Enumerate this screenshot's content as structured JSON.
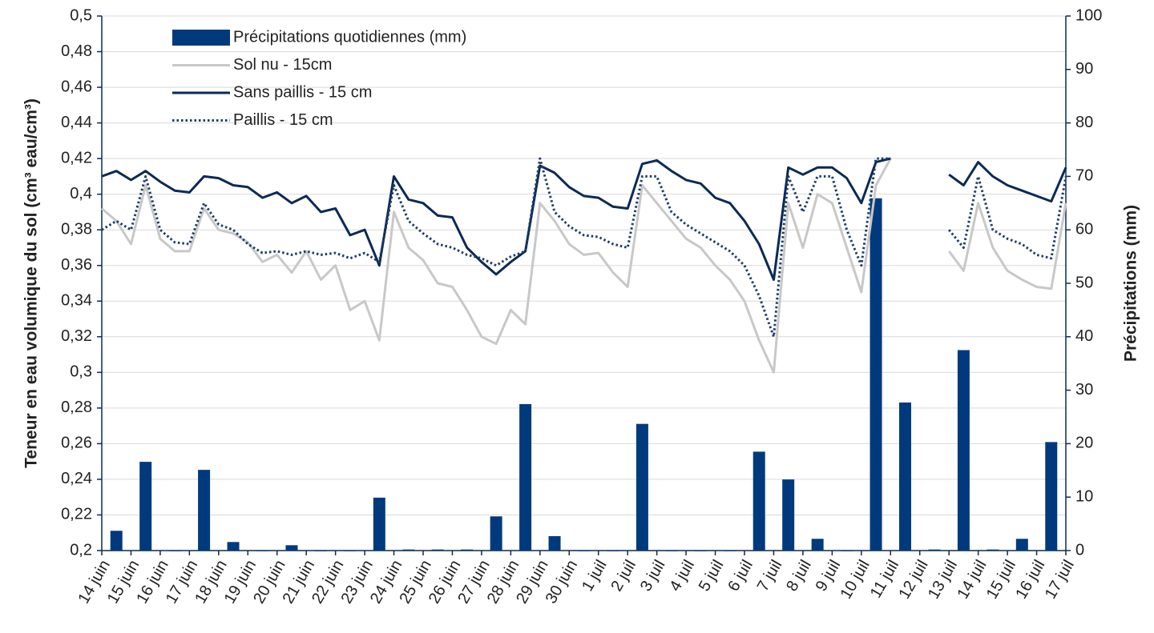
{
  "chart_data": {
    "type": "bar_line",
    "ylabel": "Teneur en eau volumique du sol (cm³ eau/cm³)",
    "y2label": "Précipitations (mm)",
    "categories": [
      "14 juin",
      null,
      "15 juin",
      null,
      "16 juin",
      null,
      "17 juin",
      null,
      "18 juin",
      null,
      "19 juin",
      null,
      "20 juin",
      null,
      "21 juin",
      null,
      "22 juin",
      null,
      "23 juin",
      null,
      "24 juin",
      null,
      "25 juin",
      null,
      "26 juin",
      null,
      "27 juin",
      null,
      "28 juin",
      null,
      "29 juin",
      null,
      "30 juin",
      null,
      "1 juil",
      null,
      "2 juil",
      null,
      "3 juil",
      null,
      "4 juil",
      null,
      "5 juil",
      null,
      "6 juil",
      null,
      "7 juil",
      null,
      "8 juil",
      null,
      "9 juil",
      null,
      "10 juil",
      null,
      "11 juil",
      null,
      "12 juil",
      null,
      "13 juil",
      null,
      "14 juil",
      null,
      "15 juil",
      null,
      "16 juil",
      null,
      "17 juil"
    ],
    "series": [
      {
        "name": "Précipitations quotidiennes (mm)",
        "kind": "bar",
        "axis": "y2",
        "color": "#003a7d",
        "values": [
          null,
          3.7,
          null,
          16.6,
          null,
          0,
          null,
          15.1,
          null,
          1.6,
          null,
          0,
          null,
          1,
          null,
          0,
          null,
          0,
          null,
          9.9,
          null,
          0.2,
          null,
          0.2,
          null,
          0.2,
          null,
          6.4,
          null,
          27.4,
          null,
          2.7,
          null,
          0,
          null,
          0,
          null,
          23.7,
          null,
          0,
          null,
          0,
          null,
          0,
          null,
          18.5,
          null,
          13.3,
          null,
          2.2,
          null,
          0,
          null,
          65.9,
          null,
          27.7,
          null,
          0.2,
          null,
          37.5,
          null,
          0.2,
          null,
          2.2,
          null,
          20.3,
          null
        ]
      },
      {
        "name": "Sol nu - 15cm",
        "kind": "line",
        "color": "#c8c8c8",
        "dash": "solid",
        "values": [
          0.392,
          0.385,
          0.372,
          0.405,
          0.375,
          0.368,
          0.368,
          0.392,
          0.38,
          0.378,
          0.373,
          0.362,
          0.366,
          0.356,
          0.368,
          0.352,
          0.36,
          0.335,
          0.34,
          0.318,
          0.39,
          0.37,
          0.363,
          0.35,
          0.348,
          0.335,
          0.32,
          0.316,
          0.335,
          0.327,
          0.395,
          0.385,
          0.372,
          0.366,
          0.367,
          0.356,
          0.348,
          0.405,
          0.395,
          0.385,
          0.375,
          0.37,
          0.36,
          0.352,
          0.34,
          0.318,
          0.3,
          0.395,
          0.37,
          0.4,
          0.395,
          0.37,
          0.345,
          0.405,
          0.42,
          null,
          null,
          null,
          0.368,
          0.357,
          0.395,
          0.37,
          0.357,
          0.352,
          0.348,
          0.347,
          0.395
        ]
      },
      {
        "name": "Sans paillis - 15 cm",
        "kind": "line",
        "color": "#0b2a55",
        "dash": "solid",
        "values": [
          0.41,
          0.413,
          0.408,
          0.413,
          0.407,
          0.402,
          0.401,
          0.41,
          0.409,
          0.405,
          0.404,
          0.398,
          0.401,
          0.395,
          0.399,
          0.39,
          0.392,
          0.377,
          0.38,
          0.36,
          0.41,
          0.397,
          0.395,
          0.388,
          0.387,
          0.37,
          0.362,
          0.355,
          0.362,
          0.368,
          0.416,
          0.412,
          0.404,
          0.399,
          0.398,
          0.393,
          0.392,
          0.417,
          0.419,
          0.413,
          0.408,
          0.406,
          0.398,
          0.395,
          0.385,
          0.372,
          0.352,
          0.415,
          0.411,
          0.415,
          0.415,
          0.409,
          0.395,
          0.418,
          0.42,
          null,
          null,
          null,
          0.411,
          0.405,
          0.418,
          0.41,
          0.405,
          0.402,
          0.399,
          0.396,
          0.415
        ]
      },
      {
        "name": "Paillis - 15 cm",
        "kind": "line",
        "color": "#1f3d66",
        "dash": "dotted",
        "values": [
          0.38,
          0.385,
          0.38,
          0.41,
          0.38,
          0.373,
          0.372,
          0.395,
          0.383,
          0.38,
          0.372,
          0.367,
          0.368,
          0.366,
          0.368,
          0.366,
          0.367,
          0.364,
          0.367,
          0.362,
          0.405,
          0.385,
          0.378,
          0.372,
          0.37,
          0.366,
          0.364,
          0.36,
          0.365,
          0.368,
          0.42,
          0.39,
          0.382,
          0.377,
          0.376,
          0.372,
          0.37,
          0.41,
          0.41,
          0.39,
          0.383,
          0.378,
          0.373,
          0.368,
          0.36,
          0.343,
          0.32,
          0.41,
          0.39,
          0.41,
          0.41,
          0.38,
          0.36,
          0.42,
          0.42,
          null,
          null,
          null,
          0.38,
          0.37,
          0.41,
          0.38,
          0.375,
          0.372,
          0.366,
          0.364,
          0.41
        ]
      }
    ],
    "ylim": [
      0.2,
      0.5
    ],
    "yticks": [
      {
        "value": 0.2,
        "label": "0,2"
      },
      {
        "value": 0.22,
        "label": "0,22"
      },
      {
        "value": 0.24,
        "label": "0,24"
      },
      {
        "value": 0.26,
        "label": "0,26"
      },
      {
        "value": 0.28,
        "label": "0,28"
      },
      {
        "value": 0.3,
        "label": "0,3"
      },
      {
        "value": 0.32,
        "label": "0,32"
      },
      {
        "value": 0.34,
        "label": "0,34"
      },
      {
        "value": 0.36,
        "label": "0,36"
      },
      {
        "value": 0.38,
        "label": "0,38"
      },
      {
        "value": 0.4,
        "label": "0,4"
      },
      {
        "value": 0.42,
        "label": "0,42"
      },
      {
        "value": 0.44,
        "label": "0,44"
      },
      {
        "value": 0.46,
        "label": "0,46"
      },
      {
        "value": 0.48,
        "label": "0,48"
      },
      {
        "value": 0.5,
        "label": "0,5"
      }
    ],
    "y2lim": [
      0,
      100
    ],
    "y2ticks": [
      0,
      10,
      20,
      30,
      40,
      50,
      60,
      70,
      80,
      90,
      100
    ],
    "grid": true,
    "legend": "upper left"
  }
}
